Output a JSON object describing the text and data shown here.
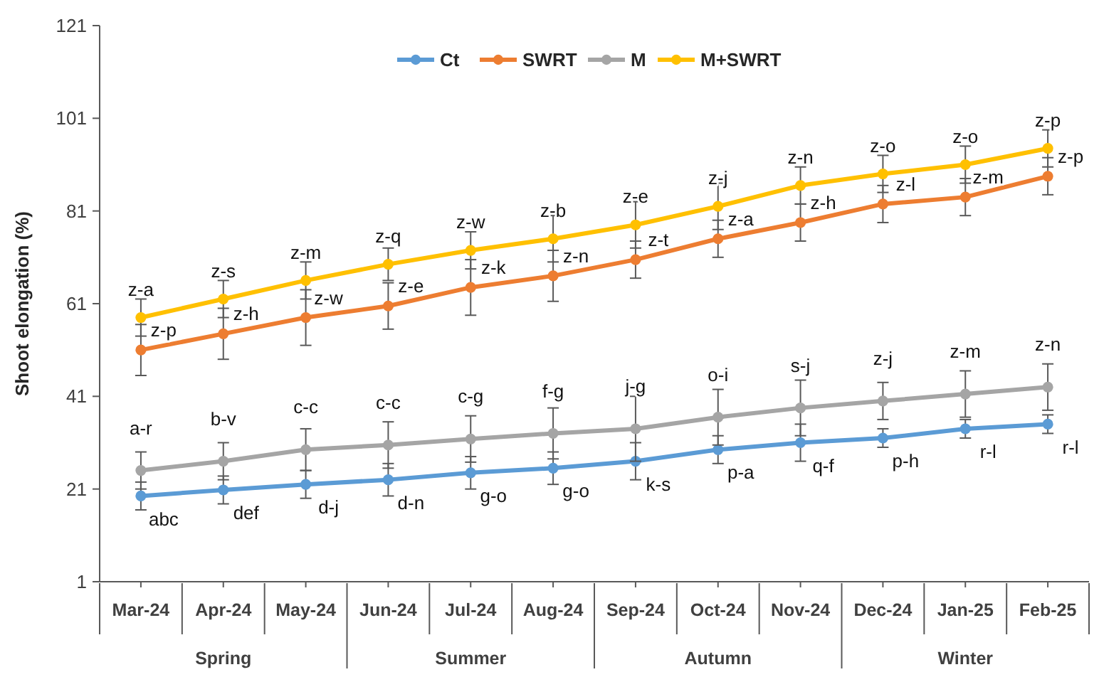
{
  "chart_data": {
    "type": "line",
    "ylabel": "Shoot elongation (%)",
    "categories": [
      "Mar-24",
      "Apr-24",
      "May-24",
      "Jun-24",
      "Jul-24",
      "Aug-24",
      "Sep-24",
      "Oct-24",
      "Nov-24",
      "Dec-24",
      "Jan-25",
      "Feb-25"
    ],
    "series": [
      {
        "name": "Ct",
        "color": "#5b9bd5",
        "values": [
          19.5,
          20.8,
          22,
          23,
          24.5,
          25.5,
          27,
          29.5,
          31,
          32,
          34,
          35
        ],
        "errors": [
          3,
          3,
          3,
          3.5,
          3.5,
          3.5,
          4,
          3,
          4,
          2,
          2,
          2
        ]
      },
      {
        "name": "SWRT",
        "color": "#ed7d31",
        "values": [
          51,
          54.5,
          58,
          60.5,
          64.5,
          67,
          70.5,
          75,
          78.5,
          82.5,
          84,
          88.5
        ],
        "errors": [
          5.5,
          5.5,
          6,
          5,
          6,
          5.5,
          4,
          4,
          4,
          4,
          4,
          4
        ]
      },
      {
        "name": "M",
        "color": "#a5a5a5",
        "values": [
          25,
          27,
          29.5,
          30.5,
          31.8,
          33,
          34,
          36.5,
          38.5,
          40,
          41.5,
          43
        ],
        "errors": [
          4,
          4,
          4.5,
          5,
          5,
          5.5,
          7,
          6,
          6,
          4,
          5,
          5
        ]
      },
      {
        "name": "M+SWRT",
        "color": "#ffc000",
        "values": [
          58,
          62,
          66,
          69.5,
          72.5,
          75,
          78,
          82,
          86.5,
          89,
          91,
          94.5
        ],
        "errors": [
          4,
          4,
          4,
          3.5,
          4,
          5,
          5,
          5,
          4,
          4,
          4,
          4
        ]
      }
    ],
    "ylim": [
      1,
      121
    ],
    "yticks": [
      1,
      21,
      41,
      61,
      81,
      101,
      121
    ],
    "grid": false,
    "legend": "top",
    "marker": "circle",
    "line_style": "solid",
    "annotations": [
      "Spring",
      "Summer",
      "Autumn",
      "Winter",
      {
        "text": "z-a",
        "x": "Mar-24",
        "y": 58
      },
      {
        "text": "z-s",
        "x": "Apr-24",
        "y": 62
      },
      {
        "text": "z-m",
        "x": "May-24",
        "y": 66
      },
      {
        "text": "z-q",
        "x": "Jun-24",
        "y": 69.5
      },
      {
        "text": "z-w",
        "x": "Jul-24",
        "y": 72.5
      },
      {
        "text": "z-b",
        "x": "Aug-24",
        "y": 75
      },
      {
        "text": "z-e",
        "x": "Sep-24",
        "y": 78
      },
      {
        "text": "z-j",
        "x": "Oct-24",
        "y": 82
      },
      {
        "text": "z-n",
        "x": "Nov-24",
        "y": 86.5
      },
      {
        "text": "z-o",
        "x": "Dec-24",
        "y": 89
      },
      {
        "text": "z-o",
        "x": "Jan-25",
        "y": 91
      },
      {
        "text": "z-p",
        "x": "Feb-25",
        "y": 94.5
      },
      {
        "text": "z-p",
        "x": "Mar-24",
        "y": 51
      },
      {
        "text": "z-h",
        "x": "Apr-24",
        "y": 54.5
      },
      {
        "text": "z-w",
        "x": "May-24",
        "y": 58
      },
      {
        "text": "z-e",
        "x": "Jun-24",
        "y": 60.5
      },
      {
        "text": "z-k",
        "x": "Jul-24",
        "y": 64.5
      },
      {
        "text": "z-n",
        "x": "Aug-24",
        "y": 67
      },
      {
        "text": "z-t",
        "x": "Sep-24",
        "y": 70.5
      },
      {
        "text": "z-a",
        "x": "Oct-24",
        "y": 75
      },
      {
        "text": "z-h",
        "x": "Nov-24",
        "y": 78.5
      },
      {
        "text": "z-l",
        "x": "Dec-24",
        "y": 82.5
      },
      {
        "text": "z-m",
        "x": "Jan-25",
        "y": 84
      },
      {
        "text": "z-p",
        "x": "Feb-25",
        "y": 88.5
      },
      {
        "text": "a-r",
        "x": "Mar-24",
        "y": 25
      },
      {
        "text": "b-v",
        "x": "Apr-24",
        "y": 27
      },
      {
        "text": "c-c",
        "x": "May-24",
        "y": 29.5
      },
      {
        "text": "c-c",
        "x": "Jun-24",
        "y": 30.5
      },
      {
        "text": "c-g",
        "x": "Jul-24",
        "y": 31.8
      },
      {
        "text": "f-g",
        "x": "Aug-24",
        "y": 33
      },
      {
        "text": "j-g",
        "x": "Sep-24",
        "y": 34
      },
      {
        "text": "o-i",
        "x": "Oct-24",
        "y": 36.5
      },
      {
        "text": "s-j",
        "x": "Nov-24",
        "y": 38.5
      },
      {
        "text": "z-j",
        "x": "Dec-24",
        "y": 40
      },
      {
        "text": "z-m",
        "x": "Jan-25",
        "y": 41.5
      },
      {
        "text": "z-n",
        "x": "Feb-25",
        "y": 43
      },
      {
        "text": "abc",
        "x": "Mar-24",
        "y": 19.5
      },
      {
        "text": "def",
        "x": "Apr-24",
        "y": 20.8
      },
      {
        "text": "d-j",
        "x": "May-24",
        "y": 22
      },
      {
        "text": "d-n",
        "x": "Jun-24",
        "y": 23
      },
      {
        "text": "g-o",
        "x": "Jul-24",
        "y": 24.5
      },
      {
        "text": "g-o",
        "x": "Aug-24",
        "y": 25.5
      },
      {
        "text": "k-s",
        "x": "Sep-24",
        "y": 27
      },
      {
        "text": "p-a",
        "x": "Oct-24",
        "y": 29.5
      },
      {
        "text": "q-f",
        "x": "Nov-24",
        "y": 31
      },
      {
        "text": "p-h",
        "x": "Dec-24",
        "y": 32
      },
      {
        "text": "r-l",
        "x": "Jan-25",
        "y": 34
      },
      {
        "text": "r-l",
        "x": "Feb-25",
        "y": 35
      }
    ]
  }
}
